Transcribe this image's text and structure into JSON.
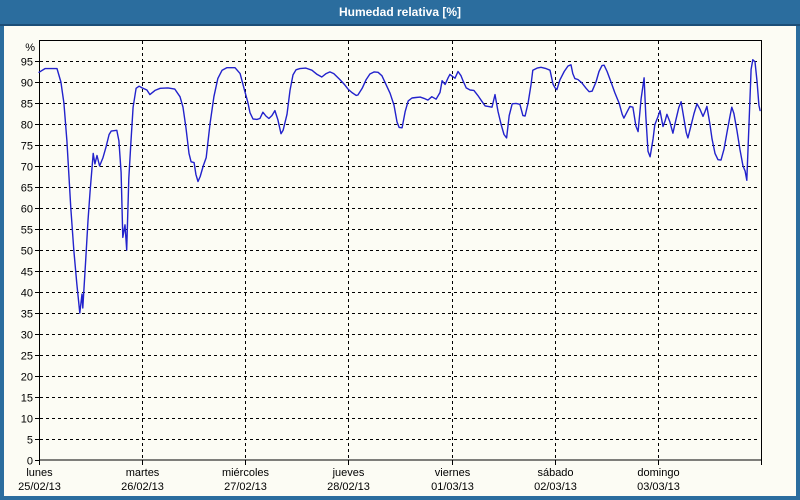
{
  "window": {
    "title": "Humedad relativa [%]",
    "colors": {
      "titlebar_bg": "#2B6D9E",
      "titlebar_border": "#1C4E77",
      "titlebar_text": "#FFFFFF",
      "frame": "#2B6D9E",
      "panel_bg": "#FCFCF4",
      "grid": "#000000",
      "axis": "#000000"
    }
  },
  "chart_data": {
    "type": "line",
    "title": "Humedad relativa [%]",
    "ylabel": "%",
    "ylim": [
      0,
      100
    ],
    "yticks": [
      0,
      5,
      10,
      15,
      20,
      25,
      30,
      35,
      40,
      45,
      50,
      55,
      60,
      65,
      70,
      75,
      80,
      85,
      90,
      95
    ],
    "grid": "dashed-both-axes",
    "legend": "none",
    "line_color": "#2222CC",
    "x_unit_hours_total": 168,
    "x_axis_days": [
      {
        "name": "lunes",
        "date": "25/02/13"
      },
      {
        "name": "martes",
        "date": "26/02/13"
      },
      {
        "name": "miércoles",
        "date": "27/02/13"
      },
      {
        "name": "jueves",
        "date": "28/02/13"
      },
      {
        "name": "viernes",
        "date": "01/03/13"
      },
      {
        "name": "sábado",
        "date": "02/03/13"
      },
      {
        "name": "domingo",
        "date": "03/03/13"
      }
    ],
    "series": [
      {
        "name": "Humedad relativa",
        "unit": "%",
        "points": [
          [
            0,
            92.3
          ],
          [
            1.4,
            93.2
          ],
          [
            4.2,
            93.2
          ],
          [
            5.1,
            90
          ],
          [
            5.8,
            85
          ],
          [
            6.5,
            76
          ],
          [
            7.4,
            60
          ],
          [
            8.1,
            50
          ],
          [
            8.8,
            42
          ],
          [
            9.5,
            35
          ],
          [
            10,
            39.5
          ],
          [
            10.2,
            36.2
          ],
          [
            10.9,
            48
          ],
          [
            11.4,
            57
          ],
          [
            11.9,
            64
          ],
          [
            12.6,
            73
          ],
          [
            13,
            70.5
          ],
          [
            13.5,
            72.5
          ],
          [
            14.1,
            70
          ],
          [
            14.9,
            72
          ],
          [
            15.6,
            74.5
          ],
          [
            16.3,
            77.5
          ],
          [
            16.8,
            78.3
          ],
          [
            18.1,
            78.5
          ],
          [
            18.6,
            76
          ],
          [
            19.1,
            68.5
          ],
          [
            19.5,
            53
          ],
          [
            20,
            56
          ],
          [
            20.4,
            50
          ],
          [
            20.9,
            67
          ],
          [
            21.4,
            76
          ],
          [
            21.9,
            84
          ],
          [
            22.6,
            88.5
          ],
          [
            23.3,
            89
          ],
          [
            24,
            88.6
          ],
          [
            25.1,
            88.1
          ],
          [
            25.8,
            87
          ],
          [
            27,
            88
          ],
          [
            28.2,
            88.5
          ],
          [
            30,
            88.6
          ],
          [
            31.6,
            88.3
          ],
          [
            32.8,
            86.5
          ],
          [
            33.5,
            84
          ],
          [
            34.2,
            79
          ],
          [
            34.9,
            73
          ],
          [
            35.4,
            71
          ],
          [
            36.1,
            70.8
          ],
          [
            36.5,
            68
          ],
          [
            37,
            66.3
          ],
          [
            37.5,
            67.5
          ],
          [
            38.2,
            70
          ],
          [
            38.9,
            72
          ],
          [
            39.8,
            80
          ],
          [
            40.7,
            86.5
          ],
          [
            41.6,
            90.8
          ],
          [
            42.6,
            92.8
          ],
          [
            43.7,
            93.4
          ],
          [
            45.6,
            93.4
          ],
          [
            46.8,
            92
          ],
          [
            47.7,
            88.5
          ],
          [
            48.6,
            85.1
          ],
          [
            49.1,
            82.7
          ],
          [
            49.8,
            81.2
          ],
          [
            50.7,
            81.1
          ],
          [
            51.4,
            81.3
          ],
          [
            52.1,
            82.8
          ],
          [
            52.8,
            81.9
          ],
          [
            53.5,
            81.3
          ],
          [
            54.2,
            82
          ],
          [
            54.9,
            83.2
          ],
          [
            55.6,
            81
          ],
          [
            56.3,
            77.7
          ],
          [
            56.8,
            78.5
          ],
          [
            57.7,
            82.3
          ],
          [
            58.4,
            88
          ],
          [
            59.1,
            91.7
          ],
          [
            59.8,
            92.9
          ],
          [
            60.7,
            93.2
          ],
          [
            62.1,
            93.3
          ],
          [
            63.5,
            92.8
          ],
          [
            64.7,
            91.8
          ],
          [
            65.8,
            91.2
          ],
          [
            66.8,
            92
          ],
          [
            67.7,
            92.4
          ],
          [
            68.6,
            92
          ],
          [
            70,
            90.6
          ],
          [
            71,
            89.5
          ],
          [
            71.9,
            88.3
          ],
          [
            72.8,
            87.5
          ],
          [
            73.8,
            86.8
          ],
          [
            74.2,
            86.9
          ],
          [
            75.2,
            88.5
          ],
          [
            76.1,
            90.5
          ],
          [
            77,
            91.9
          ],
          [
            78,
            92.4
          ],
          [
            78.9,
            92.3
          ],
          [
            79.8,
            91.5
          ],
          [
            80.7,
            89.5
          ],
          [
            81.7,
            87.3
          ],
          [
            82.6,
            84.5
          ],
          [
            83.3,
            80.5
          ],
          [
            83.8,
            79.2
          ],
          [
            84.5,
            79.1
          ],
          [
            85.2,
            83
          ],
          [
            85.9,
            85.5
          ],
          [
            86.8,
            86.2
          ],
          [
            87.7,
            86.3
          ],
          [
            88.7,
            86.4
          ],
          [
            89.6,
            86.1
          ],
          [
            90.5,
            85.7
          ],
          [
            91.4,
            86.5
          ],
          [
            92.4,
            85.9
          ],
          [
            93.3,
            87.5
          ],
          [
            93.8,
            90.3
          ],
          [
            94.5,
            89.4
          ],
          [
            95.2,
            91
          ],
          [
            95.6,
            91.8
          ],
          [
            96.1,
            91.4
          ],
          [
            96.8,
            90.9
          ],
          [
            97.5,
            92.5
          ],
          [
            98.2,
            91.5
          ],
          [
            98.7,
            90.2
          ],
          [
            99.4,
            88.6
          ],
          [
            100.3,
            88.1
          ],
          [
            101.2,
            88
          ],
          [
            102.1,
            86.8
          ],
          [
            103.1,
            85.3
          ],
          [
            103.8,
            84.3
          ],
          [
            104.5,
            84.2
          ],
          [
            105.4,
            84
          ],
          [
            106.1,
            87
          ],
          [
            106.8,
            83
          ],
          [
            107.5,
            80
          ],
          [
            108.2,
            77.5
          ],
          [
            108.8,
            76.7
          ],
          [
            109.4,
            82
          ],
          [
            110.1,
            84.8
          ],
          [
            111,
            84.9
          ],
          [
            111.9,
            84.7
          ],
          [
            112.6,
            82
          ],
          [
            113.1,
            81.9
          ],
          [
            113.8,
            85
          ],
          [
            114.5,
            89.5
          ],
          [
            114.9,
            92.8
          ],
          [
            115.9,
            93.3
          ],
          [
            116.8,
            93.5
          ],
          [
            118,
            93.2
          ],
          [
            118.9,
            92.8
          ],
          [
            119.6,
            89.5
          ],
          [
            120.1,
            88.6
          ],
          [
            120.5,
            88.2
          ],
          [
            121.2,
            90.5
          ],
          [
            122.2,
            92.5
          ],
          [
            123.1,
            93.8
          ],
          [
            123.8,
            94.1
          ],
          [
            124.2,
            92
          ],
          [
            124.7,
            90.8
          ],
          [
            125.4,
            90.6
          ],
          [
            126.3,
            89.8
          ],
          [
            127.3,
            88.5
          ],
          [
            128,
            87.7
          ],
          [
            128.7,
            87.8
          ],
          [
            129.6,
            90
          ],
          [
            130.3,
            92.5
          ],
          [
            131,
            93.9
          ],
          [
            131.5,
            94
          ],
          [
            132.2,
            92.5
          ],
          [
            133.1,
            90
          ],
          [
            134,
            87.4
          ],
          [
            135,
            84.9
          ],
          [
            135.7,
            82.3
          ],
          [
            136.1,
            81.4
          ],
          [
            136.8,
            82.8
          ],
          [
            137.5,
            84.2
          ],
          [
            138.2,
            84
          ],
          [
            138.9,
            79.5
          ],
          [
            139.4,
            78.2
          ],
          [
            140.1,
            86
          ],
          [
            140.8,
            91
          ],
          [
            141.2,
            82
          ],
          [
            141.7,
            73.5
          ],
          [
            142.2,
            72.2
          ],
          [
            142.9,
            76.5
          ],
          [
            143.3,
            79.8
          ],
          [
            144,
            81.7
          ],
          [
            144.5,
            83.2
          ],
          [
            145.2,
            79.4
          ],
          [
            145.7,
            80.8
          ],
          [
            146.1,
            82.3
          ],
          [
            146.8,
            80.5
          ],
          [
            147.5,
            77.8
          ],
          [
            148.2,
            81
          ],
          [
            148.9,
            84
          ],
          [
            149.4,
            85.3
          ],
          [
            150.1,
            81
          ],
          [
            150.6,
            78
          ],
          [
            151,
            76.7
          ],
          [
            151.7,
            79.5
          ],
          [
            152.4,
            82.5
          ],
          [
            153.1,
            84.8
          ],
          [
            153.8,
            83.5
          ],
          [
            154.5,
            81.8
          ],
          [
            155,
            83
          ],
          [
            155.4,
            84.2
          ],
          [
            156.1,
            80
          ],
          [
            156.6,
            76.5
          ],
          [
            157.3,
            73
          ],
          [
            158,
            71.5
          ],
          [
            158.7,
            71.4
          ],
          [
            159.4,
            74
          ],
          [
            160.1,
            78
          ],
          [
            160.8,
            82
          ],
          [
            161.2,
            84
          ],
          [
            161.7,
            82.5
          ],
          [
            162.4,
            78.5
          ],
          [
            163.1,
            74
          ],
          [
            163.8,
            70
          ],
          [
            164.3,
            68.8
          ],
          [
            164.7,
            66.6
          ],
          [
            165.2,
            80
          ],
          [
            165.7,
            93
          ],
          [
            166.1,
            95.3
          ],
          [
            166.6,
            94.8
          ],
          [
            167.1,
            90
          ],
          [
            167.5,
            84.5
          ],
          [
            167.8,
            83.2
          ]
        ]
      }
    ]
  }
}
